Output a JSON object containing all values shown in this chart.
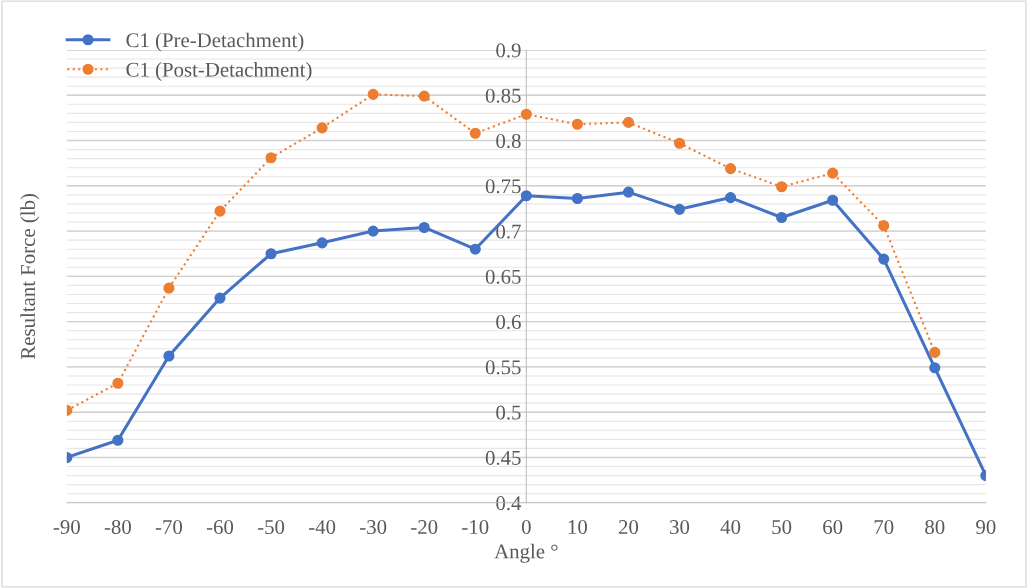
{
  "chart_data": {
    "type": "line",
    "xlabel": "Angle °",
    "ylabel": "Resultant Force (lb)",
    "x": [
      -90,
      -80,
      -70,
      -60,
      -50,
      -40,
      -30,
      -20,
      -10,
      0,
      10,
      20,
      30,
      40,
      50,
      60,
      70,
      80,
      90
    ],
    "series": [
      {
        "name": "C1 (Pre-Detachment)",
        "color": "#4472c4",
        "line_style": "solid",
        "values": [
          0.45,
          0.469,
          0.562,
          0.626,
          0.675,
          0.687,
          0.7,
          0.704,
          0.68,
          0.739,
          0.736,
          0.743,
          0.724,
          0.737,
          0.715,
          0.734,
          0.669,
          0.549,
          0.43
        ]
      },
      {
        "name": "C1 (Post-Detachment)",
        "color": "#ed7d31",
        "line_style": "dotted",
        "values": [
          0.502,
          0.532,
          0.637,
          0.722,
          0.781,
          0.814,
          0.851,
          0.849,
          0.808,
          0.829,
          0.818,
          0.82,
          0.797,
          0.769,
          0.749,
          0.764,
          0.706,
          0.566,
          null
        ]
      }
    ],
    "xlim": [
      -90,
      90
    ],
    "xticks": [
      -90,
      -80,
      -70,
      -60,
      -50,
      -40,
      -30,
      -20,
      -10,
      0,
      10,
      20,
      30,
      40,
      50,
      60,
      70,
      80,
      90
    ],
    "ylim": [
      0.4,
      0.9
    ],
    "yticks": [
      {
        "value": 0.4,
        "label": "0.4"
      },
      {
        "value": 0.45,
        "label": "0.45"
      },
      {
        "value": 0.5,
        "label": "0.5"
      },
      {
        "value": 0.55,
        "label": "0.55"
      },
      {
        "value": 0.6,
        "label": "0.6"
      },
      {
        "value": 0.65,
        "label": "0.65"
      },
      {
        "value": 0.7,
        "label": "0.7"
      },
      {
        "value": 0.75,
        "label": "0.75"
      },
      {
        "value": 0.8,
        "label": "0.8"
      },
      {
        "value": 0.85,
        "label": "0.85"
      },
      {
        "value": 0.9,
        "label": "0.9"
      }
    ],
    "grid": "y",
    "legend": "top left",
    "marker": "circle"
  }
}
